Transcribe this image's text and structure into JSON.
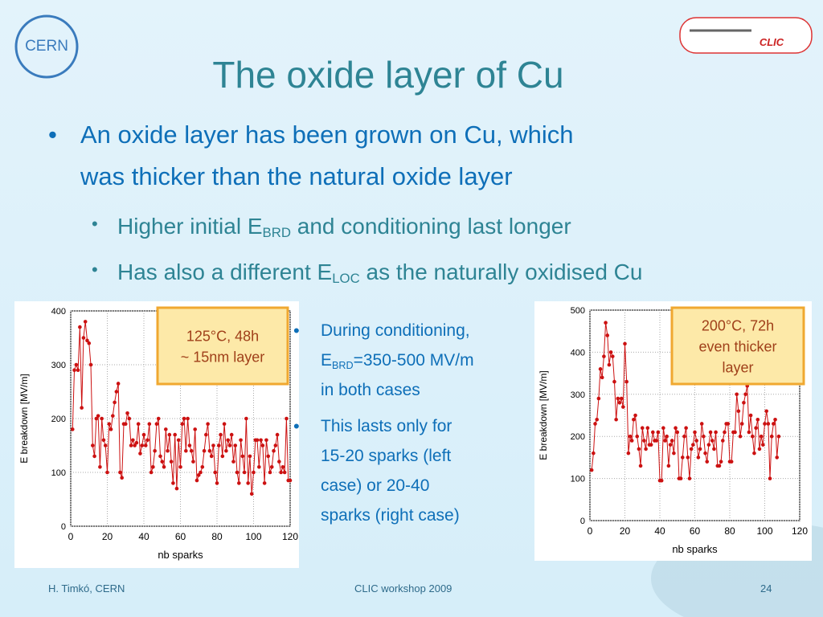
{
  "logos": {
    "cern": "CERN",
    "clic": "CLIC"
  },
  "title": "The oxide layer of Cu",
  "bullets": {
    "main": [
      "An oxide layer has been grown on Cu, which",
      "was thicker than the natural oxide layer"
    ],
    "sub": [
      {
        "before": "Higher initial E",
        "sub": "BRD",
        "after": " and conditioning last longer"
      },
      {
        "before": "Has also a different E",
        "sub": "LOC",
        "after": " as the naturally oxidised Cu"
      }
    ],
    "side": [
      {
        "lines": [
          "During conditioning,"
        ],
        "before": "E",
        "sub": "BRD",
        "after": "=350-500 MV/m",
        "rest": [
          "in both cases"
        ]
      },
      {
        "lines": [
          "This lasts only for",
          "15-20 sparks (left",
          "case) or 20-40",
          "sparks (right case)"
        ]
      }
    ]
  },
  "chart_data": [
    {
      "type": "line",
      "color": "#cc1111",
      "xlabel": "nb sparks",
      "ylabel": "E breakdown [MV/m]",
      "grid": true,
      "annotation": [
        "125°C, 48h",
        "~ 15nm layer"
      ],
      "xlim": [
        0,
        120
      ],
      "ylim": [
        0,
        400
      ],
      "xticks": [
        0,
        20,
        40,
        60,
        80,
        100,
        120
      ],
      "yticks": [
        0,
        100,
        200,
        300,
        400
      ],
      "x": [
        1,
        2,
        3,
        4,
        5,
        6,
        7,
        8,
        9,
        10,
        11,
        12,
        13,
        14,
        15,
        16,
        17,
        18,
        19,
        20,
        21,
        22,
        23,
        24,
        25,
        26,
        27,
        28,
        29,
        30,
        31,
        32,
        33,
        34,
        35,
        36,
        37,
        38,
        39,
        40,
        41,
        42,
        43,
        44,
        45,
        46,
        47,
        48,
        49,
        50,
        51,
        52,
        53,
        54,
        55,
        56,
        57,
        58,
        59,
        60,
        61,
        62,
        63,
        64,
        65,
        66,
        67,
        68,
        69,
        70,
        71,
        72,
        73,
        74,
        75,
        76,
        77,
        78,
        79,
        80,
        81,
        82,
        83,
        84,
        85,
        86,
        87,
        88,
        89,
        90,
        91,
        92,
        93,
        94,
        95,
        96,
        97,
        98,
        99,
        100,
        101,
        102,
        103,
        104,
        105,
        106,
        107,
        108,
        109,
        110,
        111,
        112,
        113,
        114,
        115,
        116,
        117,
        118,
        119,
        120
      ],
      "values": [
        180,
        290,
        300,
        290,
        370,
        220,
        350,
        380,
        345,
        340,
        300,
        150,
        130,
        200,
        205,
        110,
        200,
        160,
        150,
        100,
        190,
        180,
        205,
        230,
        250,
        265,
        100,
        90,
        190,
        190,
        210,
        200,
        150,
        160,
        150,
        155,
        190,
        135,
        150,
        170,
        150,
        160,
        190,
        100,
        110,
        140,
        190,
        200,
        130,
        120,
        110,
        180,
        140,
        170,
        120,
        80,
        170,
        70,
        160,
        110,
        190,
        200,
        140,
        200,
        150,
        140,
        120,
        180,
        85,
        95,
        100,
        110,
        140,
        170,
        190,
        140,
        130,
        150,
        100,
        80,
        150,
        170,
        130,
        190,
        140,
        160,
        150,
        170,
        120,
        150,
        100,
        80,
        160,
        130,
        100,
        200,
        80,
        130,
        60,
        100,
        160,
        160,
        110,
        160,
        150,
        80,
        160,
        130,
        100,
        110,
        140,
        150,
        170,
        120,
        100,
        110,
        100,
        200,
        85,
        85
      ]
    },
    {
      "type": "line",
      "color": "#cc1111",
      "xlabel": "nb sparks",
      "ylabel": "E breakdown [MV/m]",
      "grid": true,
      "annotation": [
        "200°C, 72h",
        "even thicker",
        "layer"
      ],
      "xlim": [
        0,
        120
      ],
      "ylim": [
        0,
        500
      ],
      "xticks": [
        0,
        20,
        40,
        60,
        80,
        100,
        120
      ],
      "yticks": [
        0,
        100,
        200,
        300,
        400,
        500
      ],
      "x": [
        1,
        2,
        3,
        4,
        5,
        6,
        7,
        8,
        9,
        10,
        11,
        12,
        13,
        14,
        15,
        16,
        17,
        18,
        19,
        20,
        21,
        22,
        23,
        24,
        25,
        26,
        27,
        28,
        29,
        30,
        31,
        32,
        33,
        34,
        35,
        36,
        37,
        38,
        39,
        40,
        41,
        42,
        43,
        44,
        45,
        46,
        47,
        48,
        49,
        50,
        51,
        52,
        53,
        54,
        55,
        56,
        57,
        58,
        59,
        60,
        61,
        62,
        63,
        64,
        65,
        66,
        67,
        68,
        69,
        70,
        71,
        72,
        73,
        74,
        75,
        76,
        77,
        78,
        79,
        80,
        81,
        82,
        83,
        84,
        85,
        86,
        87,
        88,
        89,
        90,
        91,
        92,
        93,
        94,
        95,
        96,
        97,
        98,
        99,
        100,
        101,
        102,
        103,
        104,
        105,
        106,
        107,
        108
      ],
      "values": [
        120,
        160,
        230,
        240,
        290,
        360,
        340,
        390,
        470,
        440,
        370,
        400,
        390,
        330,
        240,
        290,
        280,
        290,
        270,
        420,
        330,
        160,
        200,
        190,
        240,
        250,
        200,
        170,
        130,
        220,
        190,
        170,
        220,
        180,
        180,
        210,
        190,
        190,
        210,
        95,
        95,
        220,
        190,
        200,
        130,
        180,
        190,
        160,
        220,
        210,
        100,
        100,
        150,
        200,
        220,
        150,
        100,
        170,
        180,
        210,
        190,
        150,
        170,
        230,
        200,
        160,
        140,
        180,
        210,
        190,
        170,
        210,
        130,
        130,
        140,
        190,
        210,
        230,
        230,
        140,
        140,
        210,
        210,
        300,
        260,
        200,
        230,
        280,
        300,
        320,
        210,
        250,
        200,
        160,
        220,
        240,
        170,
        200,
        180,
        230,
        260,
        230,
        100,
        200,
        230,
        240,
        150,
        200
      ]
    }
  ],
  "footer": {
    "author": "H. Timkó, CERN",
    "event": "CLIC workshop 2009",
    "page": "24"
  }
}
